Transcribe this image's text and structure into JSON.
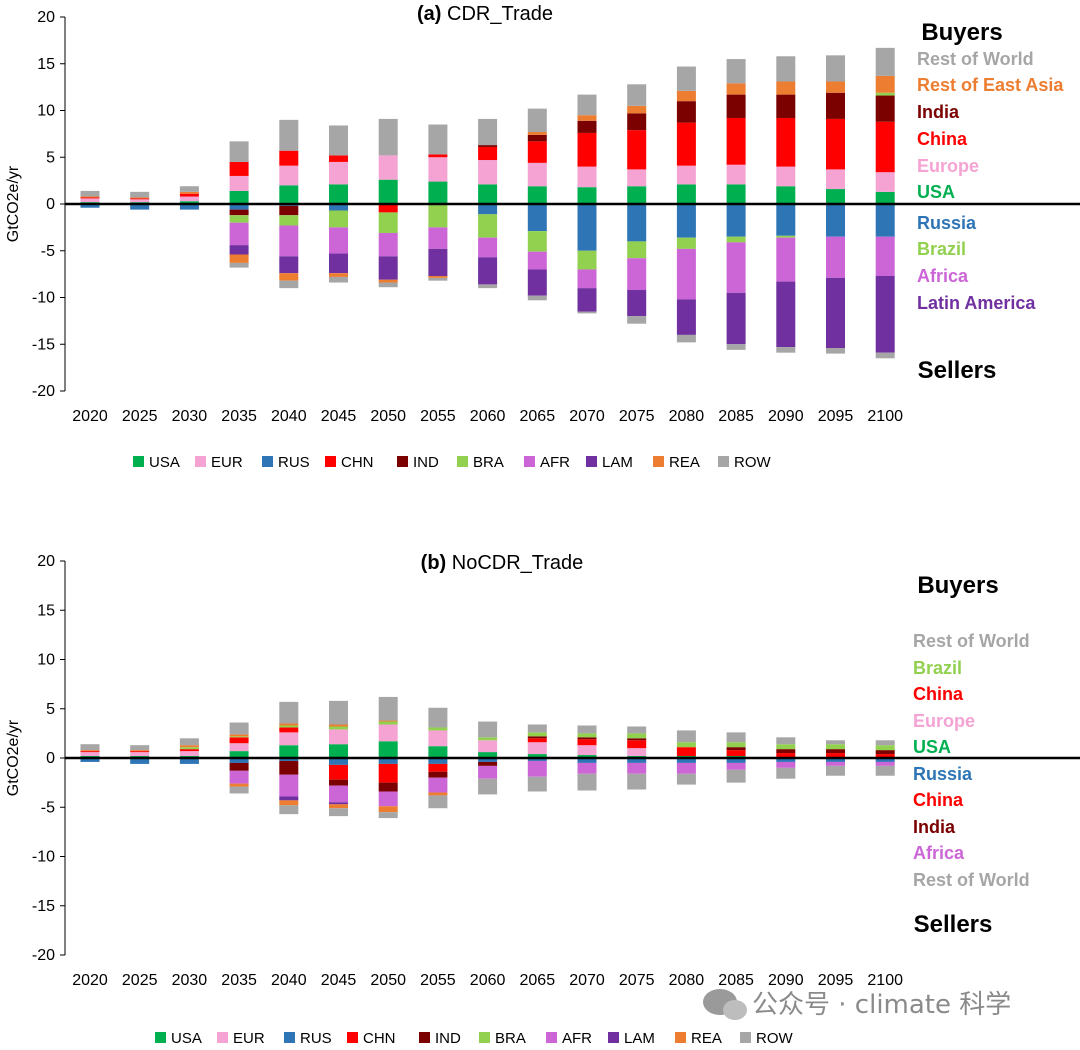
{
  "legend_codes": {
    "USA": "USA",
    "EUR": "EUR",
    "RUS": "RUS",
    "CHN": "CHN",
    "IND": "IND",
    "BRA": "BRA",
    "AFR": "AFR",
    "LAM": "LAM",
    "REA": "REA",
    "ROW": "ROW"
  },
  "colors": {
    "USA": "#00b050",
    "EUR": "#f4a3d3",
    "RUS": "#2e75b6",
    "CHN": "#ff0000",
    "IND": "#7b0000",
    "BRA": "#92d050",
    "AFR": "#cc66d6",
    "LAM": "#7030a0",
    "REA": "#ed7d31",
    "ROW": "#a6a6a6"
  },
  "watermark": "公众号 · climate 科学",
  "chart_data": [
    {
      "type": "bar",
      "title_prefix": "(a)",
      "title": "CDR_Trade",
      "ylabel": "GtCO2e/yr",
      "ylim": [
        -20,
        20
      ],
      "yticks": [
        20,
        15,
        10,
        5,
        0,
        -5,
        -10,
        -15,
        -20
      ],
      "categories": [
        "2020",
        "2025",
        "2030",
        "2035",
        "2040",
        "2045",
        "2050",
        "2055",
        "2060",
        "2065",
        "2070",
        "2075",
        "2080",
        "2085",
        "2090",
        "2095",
        "2100"
      ],
      "side_top": "Buyers",
      "side_bottom": "Sellers",
      "side_labels": [
        {
          "text": "Rest of World",
          "key": "ROW"
        },
        {
          "text": "Rest of East Asia",
          "key": "REA"
        },
        {
          "text": "India",
          "key": "IND"
        },
        {
          "text": "China",
          "key": "CHN"
        },
        {
          "text": "Europe",
          "key": "EUR"
        },
        {
          "text": "USA",
          "key": "USA"
        },
        {
          "text": "Russia",
          "key": "RUS"
        },
        {
          "text": "Brazil",
          "key": "BRA"
        },
        {
          "text": "Africa",
          "key": "AFR"
        },
        {
          "text": "Latin America",
          "key": "LAM"
        }
      ],
      "series_pos": [
        {
          "name": "USA",
          "values": [
            0.2,
            0.2,
            0.3,
            1.4,
            2.0,
            2.1,
            2.6,
            2.4,
            2.1,
            1.9,
            1.8,
            1.9,
            2.1,
            2.1,
            1.9,
            1.6,
            1.3
          ]
        },
        {
          "name": "EUR",
          "values": [
            0.4,
            0.3,
            0.5,
            1.6,
            2.1,
            2.4,
            2.6,
            2.6,
            2.6,
            2.5,
            2.2,
            1.8,
            2.0,
            2.1,
            2.1,
            2.1,
            2.1
          ]
        },
        {
          "name": "CHN",
          "values": [
            0.1,
            0.1,
            0.3,
            1.5,
            1.6,
            0.7,
            0,
            0.3,
            1.4,
            2.3,
            3.6,
            4.2,
            4.6,
            5.0,
            5.2,
            5.4,
            5.4
          ]
        },
        {
          "name": "IND",
          "values": [
            0,
            0,
            0,
            0,
            0,
            0,
            0,
            0,
            0.2,
            0.7,
            1.3,
            1.8,
            2.3,
            2.5,
            2.5,
            2.8,
            2.8
          ]
        },
        {
          "name": "BRA",
          "values": [
            0,
            0,
            0,
            0,
            0,
            0,
            0,
            0,
            0,
            0,
            0,
            0,
            0,
            0,
            0,
            0,
            0.3
          ]
        },
        {
          "name": "REA",
          "values": [
            0.1,
            0.1,
            0.2,
            0,
            0,
            0,
            0,
            0,
            0,
            0.3,
            0.6,
            0.8,
            1.1,
            1.2,
            1.4,
            1.2,
            1.8
          ]
        },
        {
          "name": "ROW",
          "values": [
            0.6,
            0.6,
            0.6,
            2.2,
            3.3,
            3.2,
            3.9,
            3.2,
            2.8,
            2.5,
            2.2,
            2.3,
            2.6,
            2.6,
            2.7,
            2.8,
            3.0
          ]
        }
      ],
      "series_neg": [
        {
          "name": "RUS",
          "values": [
            -0.4,
            -0.6,
            -0.6,
            -0.6,
            -0.2,
            -0.7,
            0,
            0,
            -1.1,
            -2.9,
            -5.0,
            -4.0,
            -3.6,
            -3.5,
            -3.4,
            -3.5,
            -3.5
          ]
        },
        {
          "name": "CHN",
          "values": [
            0,
            0,
            0,
            0,
            0,
            0,
            -0.9,
            0,
            0,
            0,
            0,
            0,
            0,
            0,
            0,
            0,
            0
          ]
        },
        {
          "name": "IND",
          "values": [
            0,
            0,
            0,
            -0.6,
            -1.0,
            0,
            0,
            0,
            0,
            0,
            0,
            0,
            0,
            0,
            0,
            0,
            0
          ]
        },
        {
          "name": "BRA",
          "values": [
            0,
            0,
            0,
            -0.8,
            -1.1,
            -1.8,
            -2.2,
            -2.5,
            -2.5,
            -2.2,
            -2.0,
            -1.8,
            -1.2,
            -0.6,
            -0.2,
            0,
            0
          ]
        },
        {
          "name": "AFR",
          "values": [
            0,
            0,
            0,
            -2.4,
            -3.3,
            -2.8,
            -2.5,
            -2.3,
            -2.1,
            -1.9,
            -2.0,
            -3.4,
            -5.4,
            -5.4,
            -4.7,
            -4.4,
            -4.2
          ]
        },
        {
          "name": "LAM",
          "values": [
            0,
            0,
            0,
            -1.0,
            -1.8,
            -2.1,
            -2.5,
            -2.9,
            -2.9,
            -2.8,
            -2.5,
            -2.8,
            -3.8,
            -5.5,
            -7.0,
            -7.5,
            -8.2
          ]
        },
        {
          "name": "REA",
          "values": [
            0,
            0,
            0,
            -0.9,
            -0.8,
            -0.4,
            -0.3,
            -0.2,
            0,
            0,
            0,
            0,
            0,
            0,
            0,
            0,
            0
          ]
        },
        {
          "name": "ROW",
          "values": [
            0,
            0,
            0,
            -0.5,
            -0.8,
            -0.6,
            -0.5,
            -0.3,
            -0.4,
            -0.5,
            -0.2,
            -0.8,
            -0.8,
            -0.6,
            -0.6,
            -0.6,
            -0.6
          ]
        }
      ]
    },
    {
      "type": "bar",
      "title_prefix": "(b)",
      "title": "NoCDR_Trade",
      "ylabel": "GtCO2e/yr",
      "ylim": [
        -20,
        20
      ],
      "yticks": [
        20,
        15,
        10,
        5,
        0,
        -5,
        -10,
        -15,
        -20
      ],
      "categories": [
        "2020",
        "2025",
        "2030",
        "2035",
        "2040",
        "2045",
        "2050",
        "2055",
        "2060",
        "2065",
        "2070",
        "2075",
        "2080",
        "2085",
        "2090",
        "2095",
        "2100"
      ],
      "side_top": "Buyers",
      "side_bottom": "Sellers",
      "side_labels": [
        {
          "text": "Rest of World",
          "key": "ROW"
        },
        {
          "text": "Brazil",
          "key": "BRA"
        },
        {
          "text": "China",
          "key": "CHN"
        },
        {
          "text": "Europe",
          "key": "EUR"
        },
        {
          "text": "USA",
          "key": "USA"
        },
        {
          "text": "Russia",
          "key": "RUS"
        },
        {
          "text": "China",
          "key": "CHN"
        },
        {
          "text": "India",
          "key": "IND"
        },
        {
          "text": "Africa",
          "key": "AFR"
        },
        {
          "text": "Rest of World",
          "key": "ROW"
        }
      ],
      "series_pos": [
        {
          "name": "USA",
          "values": [
            0.2,
            0.2,
            0.2,
            0.7,
            1.3,
            1.4,
            1.7,
            1.2,
            0.6,
            0.4,
            0.3,
            0.2,
            0.2,
            0.2,
            0.1,
            0.1,
            0.1
          ]
        },
        {
          "name": "EUR",
          "values": [
            0.4,
            0.4,
            0.5,
            0.8,
            1.3,
            1.5,
            1.7,
            1.6,
            1.2,
            1.2,
            1.0,
            0.8,
            0,
            0,
            0,
            0,
            0
          ]
        },
        {
          "name": "CHN",
          "values": [
            0.1,
            0.1,
            0.2,
            0.6,
            0.5,
            0,
            0,
            0,
            0,
            0.4,
            0.6,
            0.8,
            0.9,
            0.6,
            0.4,
            0.4,
            0.3
          ]
        },
        {
          "name": "IND",
          "values": [
            0,
            0,
            0,
            0,
            0,
            0,
            0,
            0,
            0,
            0.2,
            0.2,
            0.2,
            0,
            0.3,
            0.4,
            0.4,
            0.4
          ]
        },
        {
          "name": "BRA",
          "values": [
            0,
            0,
            0.2,
            0.1,
            0.2,
            0.3,
            0.3,
            0.3,
            0.3,
            0.4,
            0.4,
            0.5,
            0.5,
            0.5,
            0.5,
            0.5,
            0.5
          ]
        },
        {
          "name": "REA",
          "values": [
            0.1,
            0.1,
            0.2,
            0.2,
            0.2,
            0.2,
            0.1,
            0,
            0,
            0,
            0,
            0,
            0,
            0,
            0,
            0,
            0
          ]
        },
        {
          "name": "ROW",
          "values": [
            0.6,
            0.5,
            0.7,
            1.2,
            2.2,
            2.4,
            2.4,
            2.0,
            1.6,
            0.8,
            0.8,
            0.7,
            1.2,
            1.0,
            0.7,
            0.4,
            0.5
          ]
        }
      ],
      "series_neg": [
        {
          "name": "RUS",
          "values": [
            -0.4,
            -0.6,
            -0.6,
            -0.5,
            -0.3,
            -0.7,
            -0.6,
            -0.6,
            -0.4,
            -0.3,
            -0.5,
            -0.5,
            -0.5,
            -0.5,
            -0.4,
            -0.4,
            -0.4
          ]
        },
        {
          "name": "CHN",
          "values": [
            0,
            0,
            0,
            0,
            0,
            -1.5,
            -1.9,
            -0.8,
            0,
            0,
            0,
            0,
            0,
            0,
            0,
            0,
            0
          ]
        },
        {
          "name": "IND",
          "values": [
            0,
            0,
            0,
            -0.8,
            -1.4,
            -0.6,
            -0.9,
            -0.6,
            -0.4,
            0,
            0,
            0,
            0,
            0,
            0,
            0,
            0
          ]
        },
        {
          "name": "AFR",
          "values": [
            0,
            0,
            0,
            -1.3,
            -2.2,
            -1.7,
            -1.5,
            -1.5,
            -1.3,
            -1.6,
            -1.1,
            -1.1,
            -1.1,
            -0.7,
            -0.6,
            -0.4,
            -0.4
          ]
        },
        {
          "name": "LAM",
          "values": [
            0,
            0,
            0,
            0,
            -0.4,
            -0.2,
            0,
            0,
            0,
            0,
            0,
            0,
            0,
            0,
            0,
            0,
            0
          ]
        },
        {
          "name": "REA",
          "values": [
            0,
            0,
            0,
            -0.3,
            -0.5,
            -0.4,
            -0.6,
            -0.3,
            0,
            0,
            0,
            0,
            0,
            0,
            0,
            0,
            0
          ]
        },
        {
          "name": "ROW",
          "values": [
            0,
            0,
            0,
            -0.7,
            -0.9,
            -0.8,
            -0.6,
            -1.3,
            -1.6,
            -1.5,
            -1.7,
            -1.6,
            -1.1,
            -1.3,
            -1.1,
            -1.0,
            -1.0
          ]
        }
      ]
    }
  ]
}
